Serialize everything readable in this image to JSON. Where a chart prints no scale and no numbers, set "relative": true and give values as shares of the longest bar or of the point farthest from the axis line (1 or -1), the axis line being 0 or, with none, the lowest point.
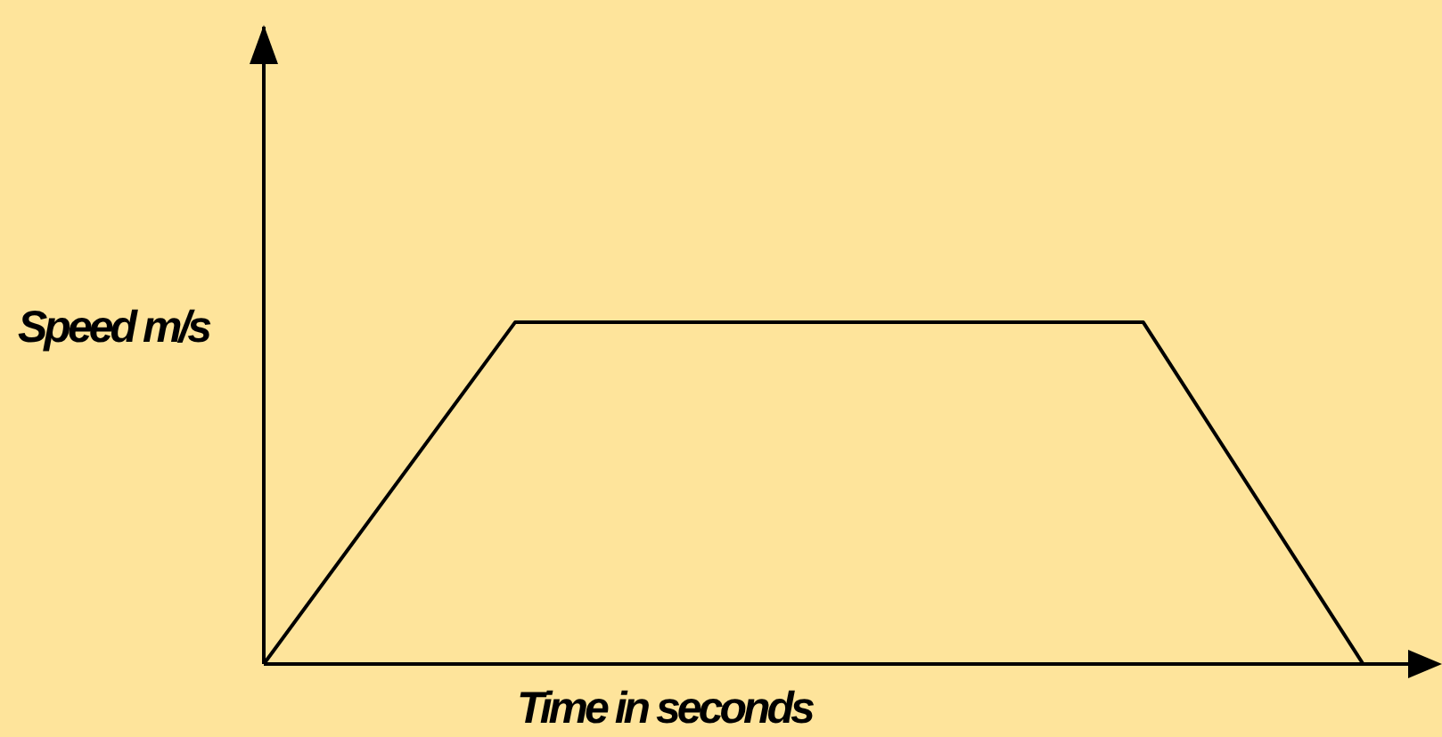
{
  "chart_data": {
    "type": "line",
    "relative": true,
    "xlabel": "Time in seconds",
    "ylabel": "Speed m/s",
    "grid": false,
    "legend": false,
    "marker": "none",
    "line_style": "solid",
    "categories": [
      null,
      null,
      null,
      null,
      null,
      null,
      null,
      null,
      null,
      null,
      null,
      null,
      null,
      null,
      null,
      null,
      null,
      null,
      null,
      null,
      null,
      null,
      null,
      null,
      null,
      null,
      null,
      null,
      null,
      null,
      null,
      null,
      null,
      null,
      null,
      null,
      null,
      null
    ],
    "series": [
      {
        "color": "#000000",
        "values": [
          0,
          null,
          null,
          null,
          null,
          null,
          null,
          null,
          1,
          null,
          null,
          null,
          null,
          null,
          null,
          null,
          null,
          null,
          null,
          null,
          null,
          null,
          null,
          null,
          null,
          null,
          null,
          null,
          1,
          null,
          null,
          null,
          null,
          null,
          null,
          0,
          null,
          null
        ]
      }
    ]
  }
}
